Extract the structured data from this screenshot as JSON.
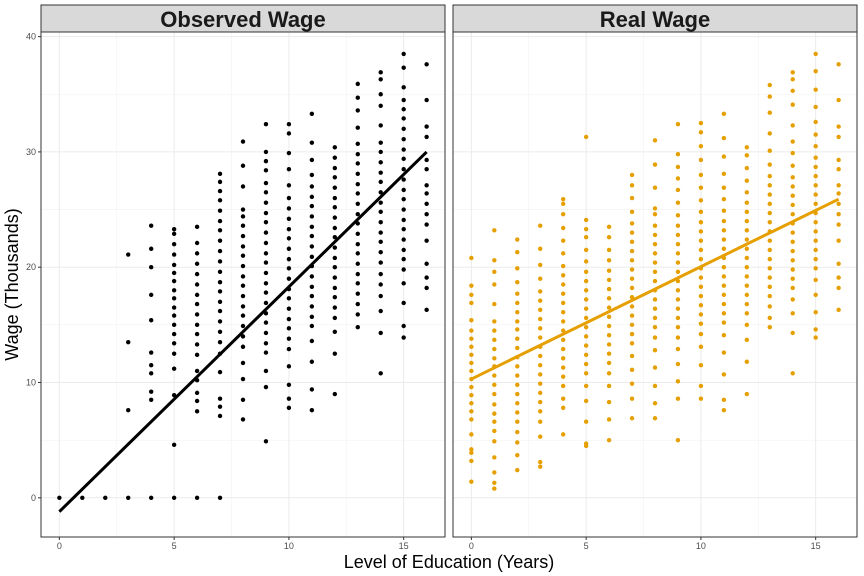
{
  "chart_data": {
    "type": "scatter",
    "xlabel": "Level of Education (Years)",
    "ylabel": "Wage (Thousands)",
    "xlim": [
      -0.8,
      16.8
    ],
    "ylim": [
      -3.4,
      40.4
    ],
    "x_ticks": [
      0,
      5,
      10,
      15
    ],
    "y_ticks": [
      0,
      10,
      20,
      30,
      40
    ],
    "grid": true,
    "legend": "none",
    "panels": [
      {
        "title": "Observed Wage",
        "color": "#000000",
        "fit": {
          "x": [
            0,
            16
          ],
          "y": [
            -1.2,
            30.0
          ]
        },
        "columns": [
          {
            "x": 0,
            "values": [
              0
            ]
          },
          {
            "x": 1,
            "values": [
              0
            ]
          },
          {
            "x": 2,
            "values": [
              0
            ]
          },
          {
            "x": 3,
            "values": [
              0,
              7.6,
              13.5,
              21.1
            ]
          },
          {
            "x": 4,
            "values": [
              0,
              8.5,
              9.2,
              10.8,
              11.5,
              12.6,
              15.4,
              17.6,
              20.0,
              21.6,
              23.6
            ]
          },
          {
            "x": 5,
            "values": [
              0,
              4.6,
              8.9,
              11.2,
              12.5,
              13.4,
              14.2,
              15.0,
              15.8,
              16.5,
              17.3,
              18.0,
              18.8,
              19.5,
              20.2,
              21.1,
              22.0,
              22.9,
              23.3
            ]
          },
          {
            "x": 6,
            "values": [
              0,
              7.5,
              8.4,
              9.1,
              10.2,
              11.0,
              12.4,
              13.3,
              14.2,
              15.0,
              15.9,
              16.8,
              17.6,
              18.5,
              19.4,
              20.3,
              21.2,
              22.1,
              23.5
            ]
          },
          {
            "x": 7,
            "values": [
              0,
              7.1,
              7.9,
              8.6,
              10.9,
              12.5,
              13.5,
              14.4,
              15.3,
              16.2,
              17.0,
              17.9,
              18.7,
              19.6,
              20.5,
              21.4,
              22.3,
              23.2,
              24.0,
              24.9,
              25.8,
              26.6,
              27.4,
              28.1
            ]
          },
          {
            "x": 8,
            "values": [
              6.8,
              8.5,
              10.3,
              11.7,
              13.1,
              14.0,
              14.9,
              15.8,
              16.6,
              17.5,
              18.4,
              19.2,
              20.1,
              21.0,
              21.8,
              22.7,
              23.6,
              24.4,
              25.0,
              27.0,
              28.8,
              30.9
            ]
          },
          {
            "x": 9,
            "values": [
              4.9,
              9.6,
              11.0,
              12.6,
              13.4,
              14.3,
              15.2,
              16.0,
              16.9,
              17.8,
              18.6,
              19.5,
              20.4,
              21.2,
              22.1,
              23.0,
              23.9,
              24.7,
              25.6,
              26.5,
              27.3,
              28.4,
              29.2,
              30.0,
              32.4
            ]
          },
          {
            "x": 10,
            "values": [
              7.8,
              8.6,
              9.8,
              11.4,
              12.9,
              13.8,
              14.7,
              15.5,
              16.4,
              17.3,
              18.1,
              19.0,
              19.9,
              20.7,
              21.6,
              22.5,
              23.3,
              24.2,
              25.1,
              26.0,
              27.1,
              28.5,
              29.9,
              31.6,
              32.4
            ]
          },
          {
            "x": 11,
            "values": [
              7.6,
              9.4,
              11.8,
              13.6,
              14.9,
              15.7,
              16.6,
              17.5,
              18.3,
              19.2,
              20.1,
              20.9,
              21.8,
              22.7,
              23.5,
              24.4,
              25.3,
              26.1,
              27.0,
              28.0,
              29.3,
              30.8,
              33.3
            ]
          },
          {
            "x": 12,
            "values": [
              9.0,
              12.5,
              14.4,
              15.6,
              16.5,
              17.4,
              18.2,
              19.1,
              20.0,
              20.8,
              21.7,
              22.6,
              23.4,
              24.3,
              25.2,
              26.0,
              26.9,
              27.8,
              28.6,
              29.5,
              30.4
            ]
          },
          {
            "x": 13,
            "values": [
              14.8,
              15.9,
              16.8,
              17.7,
              18.6,
              19.4,
              20.3,
              21.2,
              22.0,
              22.9,
              23.8,
              24.6,
              25.5,
              26.4,
              27.2,
              28.1,
              29.0,
              29.8,
              30.7,
              32.1,
              33.6,
              34.7,
              35.9
            ]
          },
          {
            "x": 14,
            "values": [
              10.8,
              14.3,
              16.2,
              17.5,
              18.5,
              19.4,
              20.4,
              21.3,
              22.2,
              23.0,
              23.9,
              24.8,
              25.6,
              26.5,
              27.4,
              28.2,
              29.1,
              30.0,
              30.8,
              32.3,
              34.0,
              35.0,
              36.3,
              36.9
            ]
          },
          {
            "x": 15,
            "values": [
              13.9,
              14.9,
              16.9,
              18.6,
              19.8,
              20.7,
              21.5,
              22.4,
              23.3,
              24.1,
              25.0,
              25.9,
              26.7,
              27.6,
              28.5,
              29.4,
              30.2,
              31.1,
              32.0,
              32.9,
              33.7,
              34.5,
              35.6,
              37.3,
              38.5
            ]
          },
          {
            "x": 16,
            "values": [
              16.3,
              18.2,
              19.1,
              20.3,
              22.3,
              23.7,
              24.6,
              25.5,
              26.4,
              27.1,
              28.5,
              29.3,
              31.3,
              32.2,
              34.5,
              37.6
            ]
          }
        ]
      },
      {
        "title": "Real Wage",
        "color": "#E69F00",
        "fit": {
          "x": [
            0,
            16
          ],
          "y": [
            10.3,
            25.9
          ]
        },
        "columns": [
          {
            "x": 0,
            "values": [
              1.4,
              3.2,
              3.9,
              4.2,
              5.5,
              6.8,
              7.5,
              8.2,
              8.9,
              9.6,
              10.3,
              11.0,
              11.7,
              12.4,
              13.1,
              13.8,
              14.5,
              15.4,
              16.9,
              17.6,
              18.4,
              20.8
            ]
          },
          {
            "x": 1,
            "values": [
              0.8,
              1.3,
              2.2,
              3.5,
              4.9,
              5.8,
              6.6,
              7.3,
              8.1,
              9.0,
              9.8,
              10.6,
              11.4,
              12.1,
              12.9,
              13.7,
              14.5,
              15.3,
              16.8,
              18.5,
              19.6,
              20.6,
              23.2
            ]
          },
          {
            "x": 2,
            "values": [
              2.4,
              3.7,
              4.8,
              5.7,
              6.6,
              7.4,
              8.2,
              9.0,
              9.8,
              10.6,
              11.4,
              12.2,
              13.0,
              13.8,
              14.6,
              15.3,
              16.1,
              16.9,
              17.7,
              18.7,
              19.9,
              21.3,
              22.4
            ]
          },
          {
            "x": 3,
            "values": [
              2.7,
              3.1,
              5.3,
              6.6,
              7.5,
              8.3,
              9.1,
              9.9,
              10.7,
              11.5,
              12.3,
              13.1,
              13.9,
              14.7,
              15.5,
              16.3,
              17.1,
              17.9,
              19.0,
              20.2,
              21.6,
              23.6
            ]
          },
          {
            "x": 4,
            "values": [
              5.5,
              7.8,
              8.6,
              9.7,
              10.5,
              11.3,
              12.1,
              12.9,
              13.7,
              14.5,
              15.3,
              16.1,
              16.9,
              17.7,
              18.5,
              19.3,
              20.1,
              21.2,
              22.3,
              23.4,
              24.6,
              25.5,
              25.9
            ]
          },
          {
            "x": 5,
            "values": [
              4.5,
              4.7,
              6.6,
              8.4,
              9.7,
              10.8,
              11.6,
              12.4,
              13.2,
              14.0,
              14.8,
              15.6,
              16.4,
              17.2,
              18.0,
              18.8,
              19.6,
              20.5,
              21.5,
              22.6,
              23.3,
              24.1,
              31.3
            ]
          },
          {
            "x": 6,
            "values": [
              5.0,
              6.8,
              8.3,
              9.7,
              10.8,
              11.7,
              12.5,
              13.3,
              14.1,
              14.9,
              15.7,
              16.5,
              17.3,
              18.1,
              18.9,
              19.7,
              20.6,
              21.5,
              22.6,
              23.5
            ]
          },
          {
            "x": 7,
            "values": [
              6.9,
              8.6,
              9.9,
              11.1,
              12.3,
              13.4,
              14.2,
              15.0,
              15.8,
              16.6,
              17.4,
              18.2,
              19.0,
              19.8,
              20.6,
              21.4,
              22.2,
              23.0,
              23.8,
              24.8,
              26.0,
              27.1,
              28.0
            ]
          },
          {
            "x": 8,
            "values": [
              6.9,
              8.2,
              9.7,
              11.3,
              12.8,
              13.9,
              14.8,
              15.6,
              16.4,
              17.2,
              18.0,
              18.8,
              19.6,
              20.4,
              21.2,
              22.0,
              22.8,
              23.6,
              24.6,
              25.1,
              26.9,
              28.9,
              31.0
            ]
          },
          {
            "x": 9,
            "values": [
              5.0,
              8.6,
              10.1,
              11.6,
              12.9,
              13.9,
              14.8,
              15.6,
              16.4,
              17.2,
              18.0,
              18.8,
              19.6,
              20.4,
              21.2,
              22.0,
              22.8,
              23.6,
              24.5,
              25.6,
              26.7,
              27.7,
              28.7,
              29.8,
              32.4
            ]
          },
          {
            "x": 10,
            "values": [
              8.6,
              9.7,
              11.5,
              13.1,
              14.2,
              15.1,
              15.9,
              16.7,
              17.5,
              18.3,
              19.1,
              19.9,
              20.7,
              21.5,
              22.3,
              23.1,
              23.9,
              24.8,
              25.8,
              26.9,
              28.0,
              29.3,
              30.5,
              31.7,
              32.5
            ]
          },
          {
            "x": 11,
            "values": [
              7.6,
              8.5,
              10.7,
              12.6,
              14.1,
              15.2,
              16.0,
              16.8,
              17.6,
              18.4,
              19.2,
              20.0,
              20.8,
              21.6,
              22.4,
              23.2,
              24.0,
              24.9,
              25.9,
              26.9,
              28.1,
              29.6,
              31.2,
              33.3
            ]
          },
          {
            "x": 12,
            "values": [
              9.0,
              11.8,
              13.7,
              15.0,
              16.0,
              16.8,
              17.6,
              18.4,
              19.2,
              20.0,
              20.8,
              21.6,
              22.4,
              23.2,
              24.0,
              24.8,
              25.6,
              26.5,
              27.5,
              28.6,
              29.7,
              30.4
            ]
          },
          {
            "x": 13,
            "values": [
              14.8,
              15.6,
              16.6,
              17.5,
              18.3,
              19.1,
              19.9,
              20.7,
              21.5,
              22.3,
              23.1,
              23.9,
              24.7,
              25.5,
              26.3,
              27.1,
              27.9,
              28.9,
              30.1,
              31.6,
              33.4,
              34.8,
              35.8
            ]
          },
          {
            "x": 14,
            "values": [
              10.8,
              14.3,
              16.0,
              17.2,
              18.2,
              19.0,
              19.8,
              20.6,
              21.4,
              22.2,
              23.0,
              23.8,
              24.6,
              25.4,
              26.2,
              27.0,
              27.8,
              28.8,
              29.9,
              30.9,
              32.3,
              34.1,
              35.3,
              36.3,
              36.9
            ]
          },
          {
            "x": 15,
            "values": [
              13.9,
              14.6,
              16.1,
              17.6,
              18.9,
              19.9,
              20.7,
              21.5,
              22.3,
              23.1,
              23.9,
              24.7,
              25.5,
              26.3,
              27.1,
              27.9,
              28.7,
              29.5,
              30.5,
              31.5,
              32.6,
              33.9,
              35.4,
              37.0,
              38.5
            ]
          },
          {
            "x": 16,
            "values": [
              16.3,
              18.2,
              19.1,
              20.3,
              22.3,
              23.7,
              24.6,
              25.5,
              26.4,
              27.1,
              28.5,
              29.3,
              31.3,
              32.2,
              34.5,
              37.6
            ]
          }
        ]
      }
    ]
  }
}
